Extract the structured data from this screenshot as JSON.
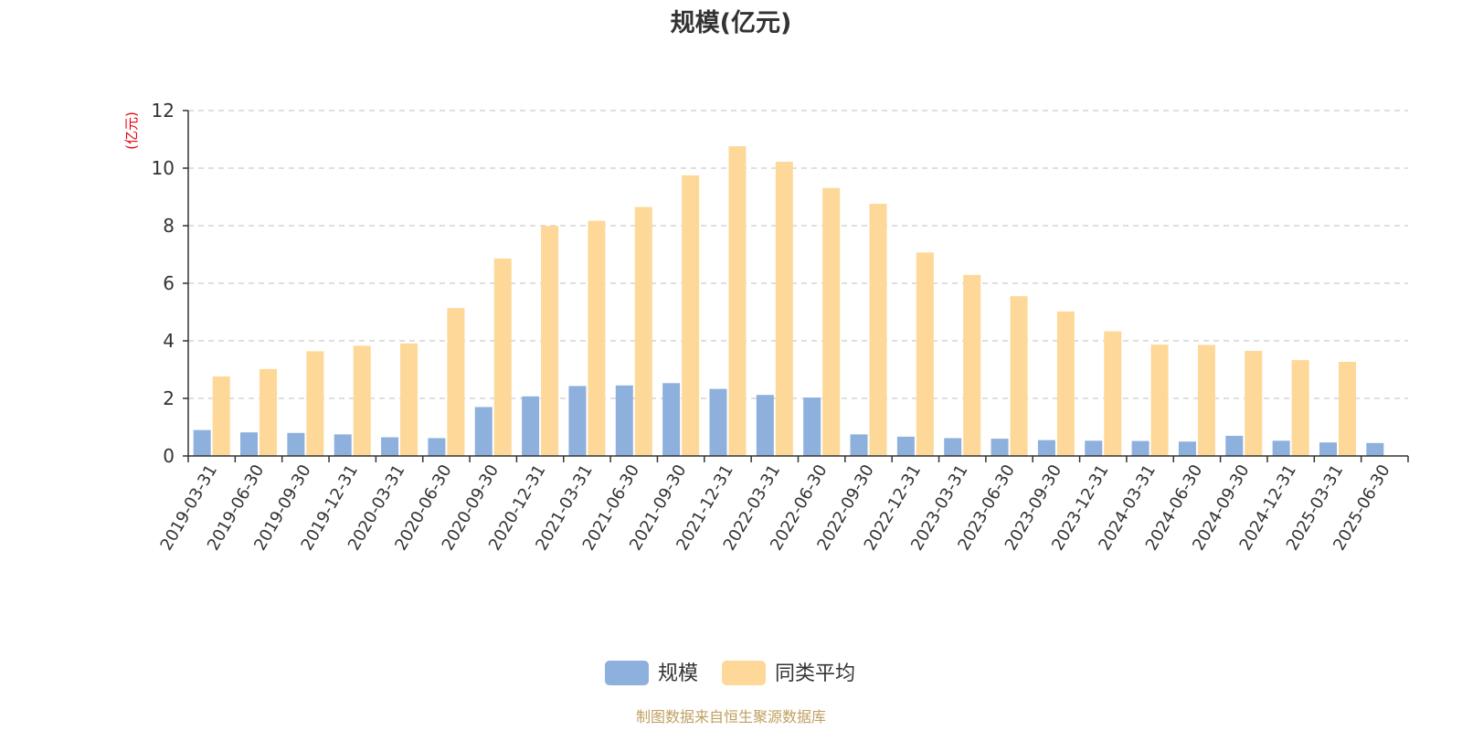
{
  "chart_data": {
    "type": "bar",
    "title": "规模(亿元)",
    "ylabel": "(亿元)",
    "xlabel": "",
    "ylim": [
      0,
      12
    ],
    "yticks": [
      0,
      2,
      4,
      6,
      8,
      10,
      12
    ],
    "grid": true,
    "legend_position": "bottom",
    "categories": [
      "2019-03-31",
      "2019-06-30",
      "2019-09-30",
      "2019-12-31",
      "2020-03-31",
      "2020-06-30",
      "2020-09-30",
      "2020-12-31",
      "2021-03-31",
      "2021-06-30",
      "2021-09-30",
      "2021-12-31",
      "2022-03-31",
      "2022-06-30",
      "2022-09-30",
      "2022-12-31",
      "2023-03-31",
      "2023-06-30",
      "2023-09-30",
      "2023-12-31",
      "2024-03-31",
      "2024-06-30",
      "2024-09-30",
      "2024-12-31",
      "2025-03-31",
      "2025-06-30"
    ],
    "series": [
      {
        "name": "规模",
        "color": "#8eb0dd",
        "values": [
          0.9,
          0.82,
          0.8,
          0.75,
          0.65,
          0.62,
          1.7,
          2.07,
          2.43,
          2.45,
          2.53,
          2.33,
          2.12,
          2.03,
          0.75,
          0.67,
          0.62,
          0.6,
          0.55,
          0.53,
          0.52,
          0.5,
          0.7,
          0.53,
          0.47,
          0.45
        ]
      },
      {
        "name": "同类平均",
        "color": "#fed898",
        "values": [
          2.76,
          3.02,
          3.64,
          3.83,
          3.91,
          5.14,
          6.86,
          7.99,
          8.17,
          8.65,
          9.75,
          10.76,
          10.22,
          9.31,
          8.76,
          7.07,
          6.29,
          5.55,
          5.02,
          4.33,
          3.87,
          3.86,
          3.65,
          3.33,
          3.27,
          null
        ]
      }
    ]
  },
  "source_text": "制图数据来自恒生聚源数据库"
}
